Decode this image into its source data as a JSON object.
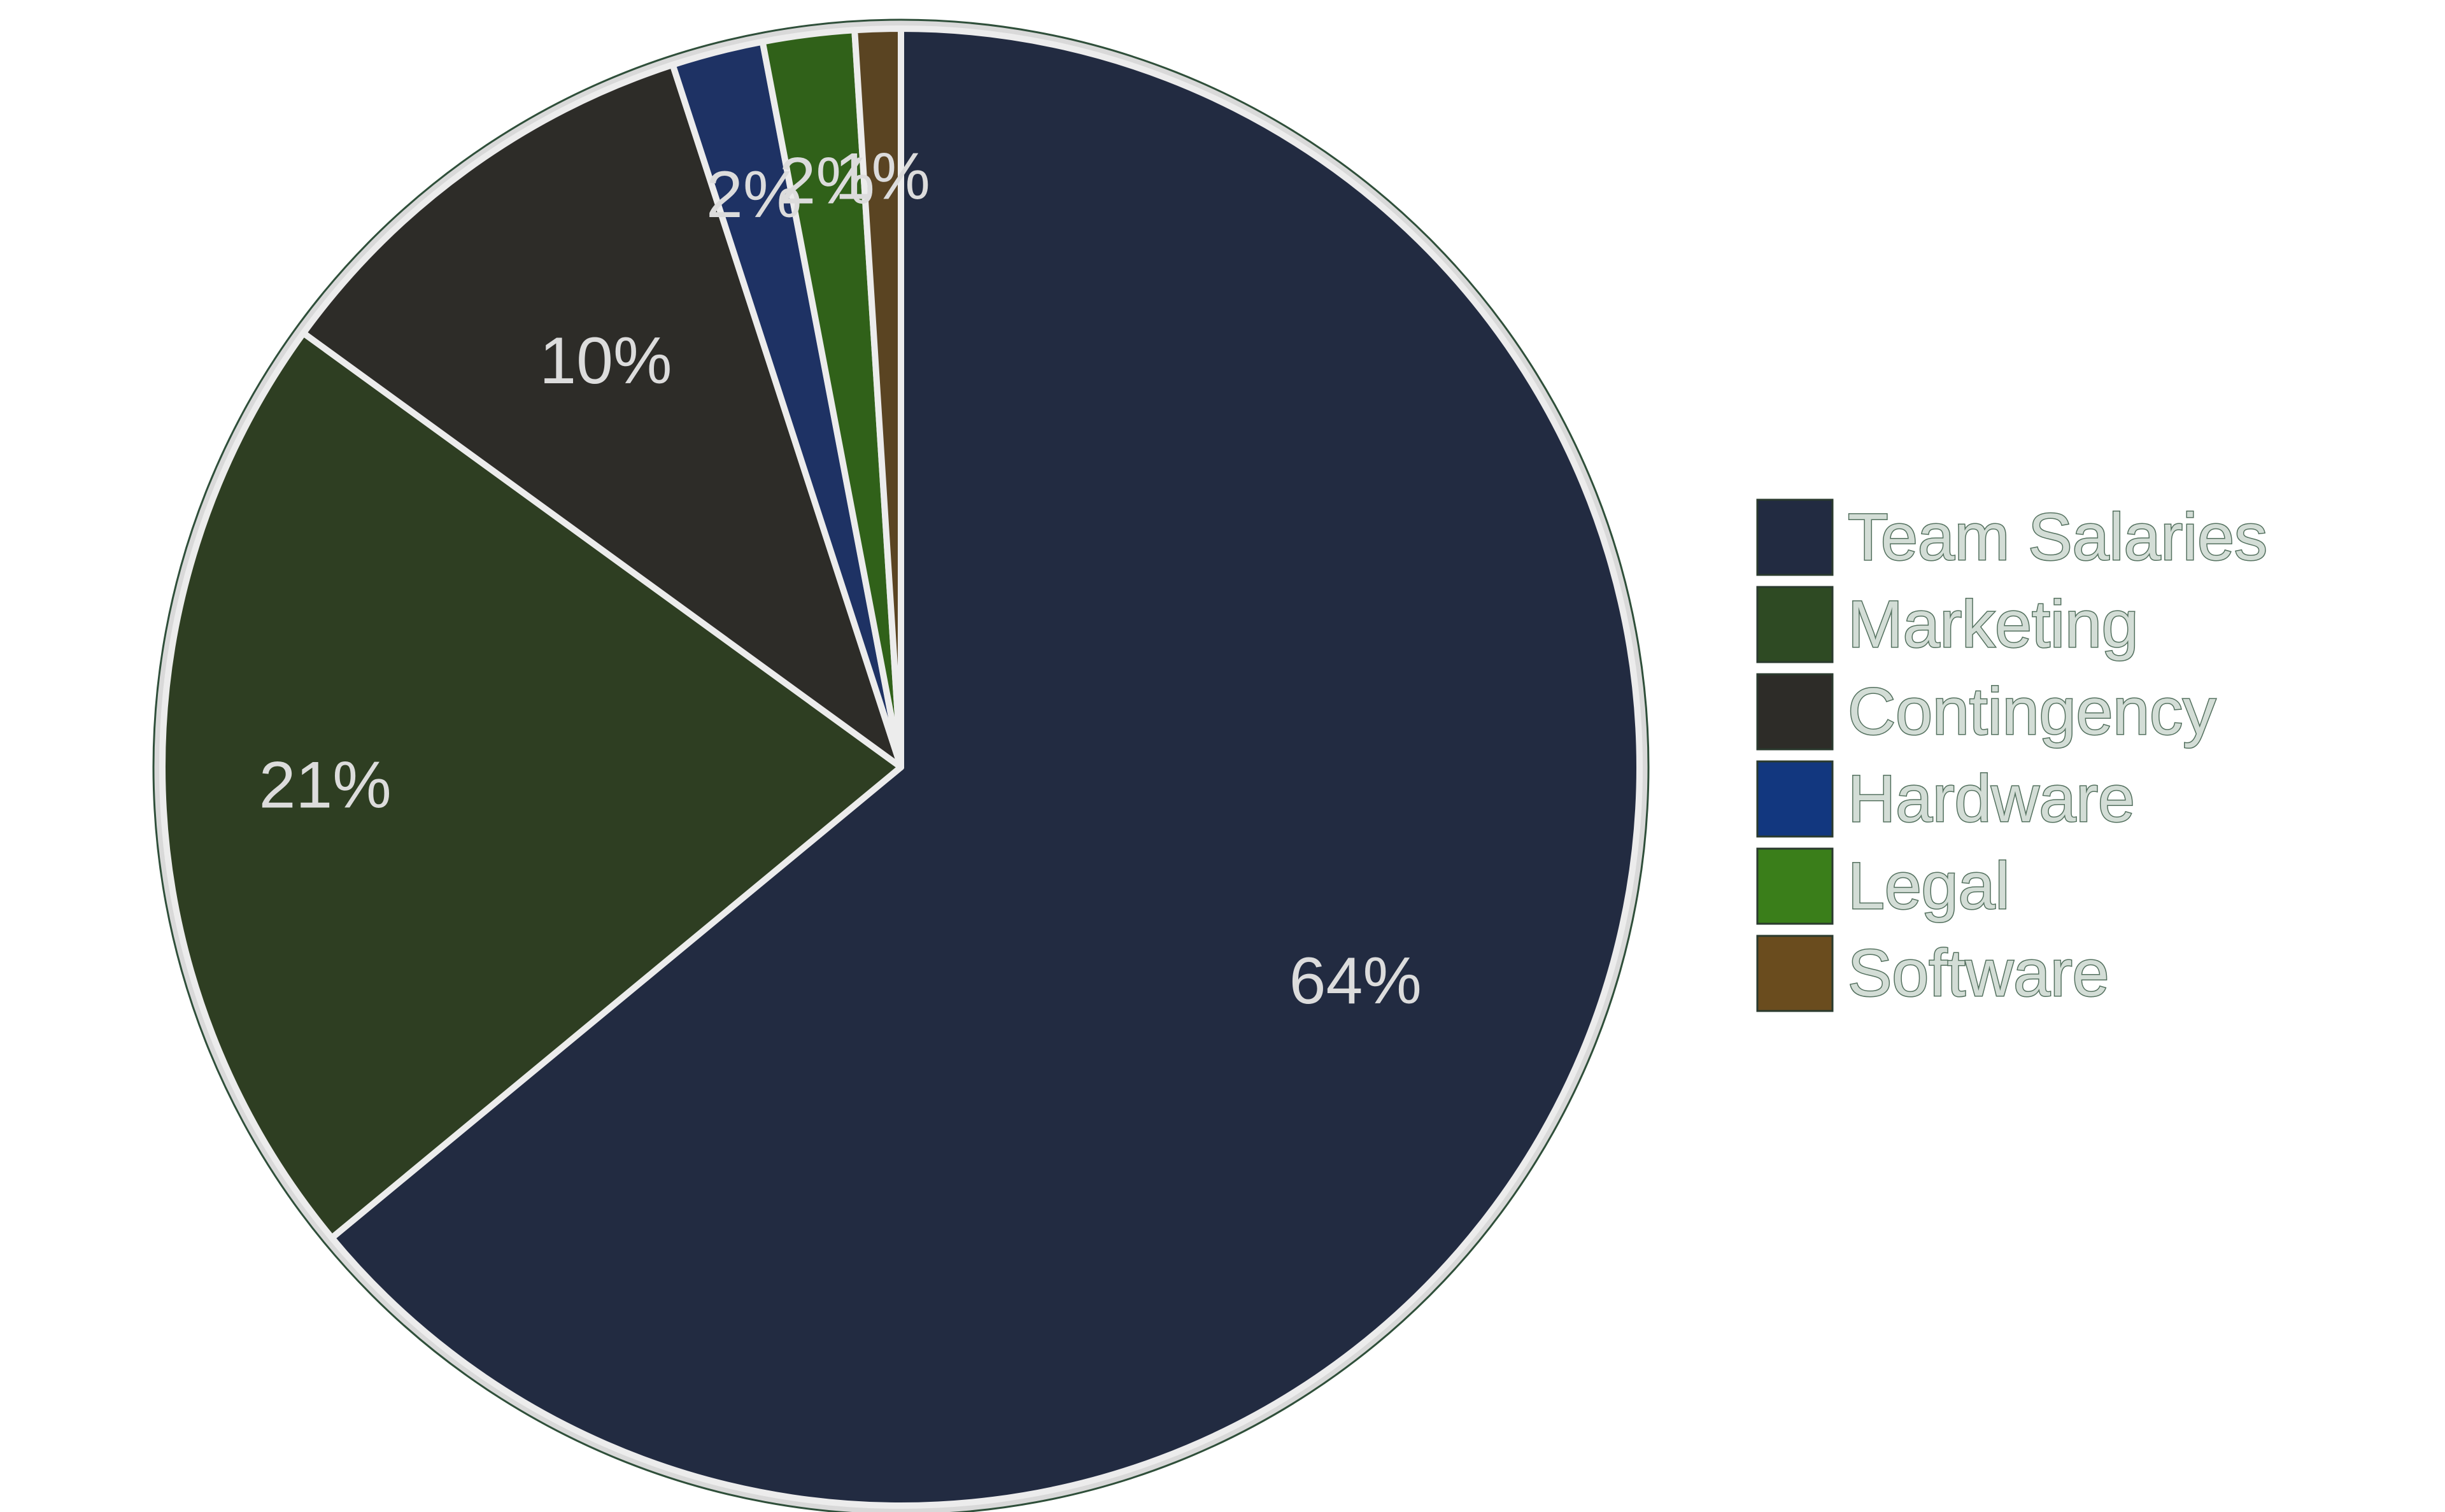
{
  "chart_data": {
    "type": "pie",
    "title": "",
    "categories": [
      "Team Salaries",
      "Marketing",
      "Contingency",
      "Hardware",
      "Legal",
      "Software"
    ],
    "values": [
      64,
      21,
      10,
      2,
      2,
      1
    ],
    "value_labels": [
      "64%",
      "21%",
      "10%",
      "2%",
      "2%",
      "1%"
    ],
    "colors": [
      "#222b41",
      "#2e3e22",
      "#2d2c28",
      "#1e3264",
      "#306119",
      "#5a4422"
    ],
    "legend_colors": [
      "#222b41",
      "#2e4a23",
      "#2d2c28",
      "#12377f",
      "#3a7e1a",
      "#6a4c1e"
    ],
    "start_angle_deg": 0,
    "direction": "clockwise",
    "slice_border_color": "#ececec",
    "outer_ring_color": "#cfcfcf",
    "legend_position": "right"
  }
}
